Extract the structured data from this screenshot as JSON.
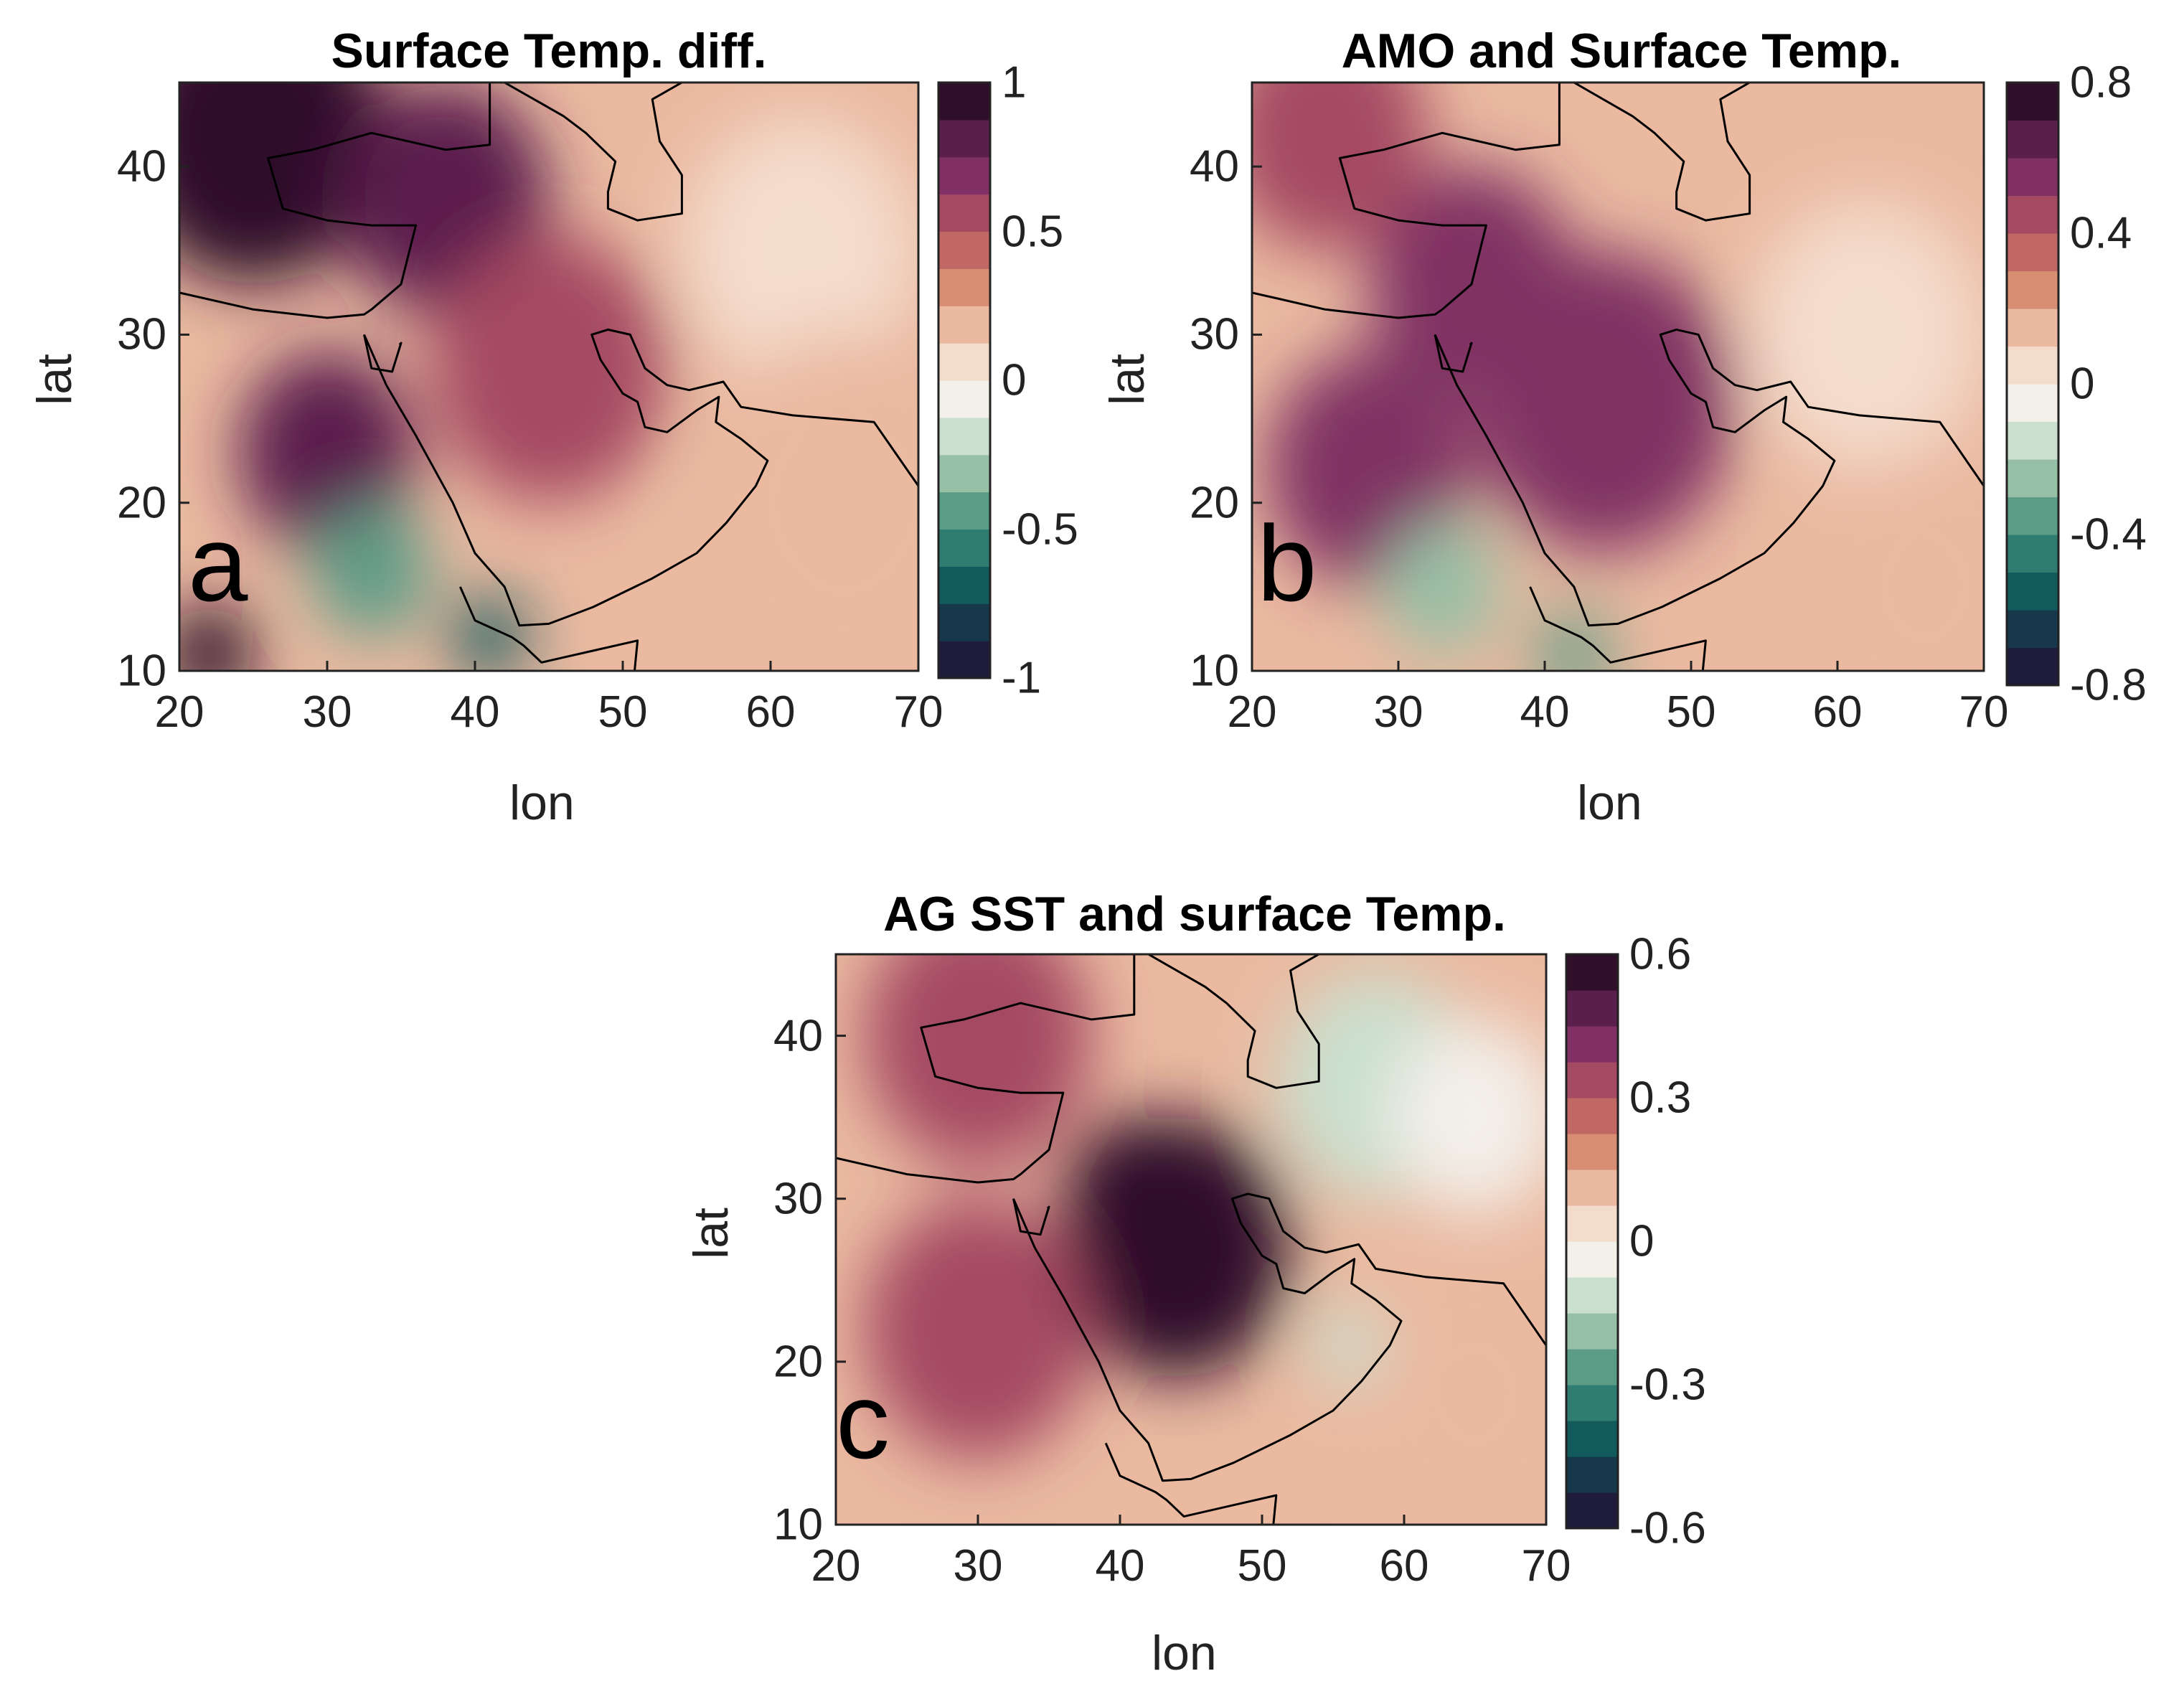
{
  "figure": {
    "colormap": [
      "#1e1b3b",
      "#17384a",
      "#135a5d",
      "#2f7c71",
      "#5b9c86",
      "#96c0a6",
      "#cadfce",
      "#f3efe9",
      "#f4dccc",
      "#eab9a0",
      "#d88e73",
      "#c26864",
      "#a44a62",
      "#803064",
      "#5b1f4e",
      "#2f0f2a"
    ],
    "coastline_color": "#000000"
  },
  "chart_data": [
    {
      "id": "a",
      "type": "heatmap",
      "title": "Surface Temp. diff.",
      "panel_letter": "a",
      "xlabel": "lon",
      "ylabel": "lat",
      "xlim": [
        20,
        70
      ],
      "ylim": [
        10,
        45
      ],
      "xticks": [
        "20",
        "30",
        "40",
        "50",
        "60",
        "70"
      ],
      "yticks": [
        "10",
        "20",
        "30",
        "40"
      ],
      "colorbar": {
        "range": [
          -1,
          1
        ],
        "ticks": [
          "1",
          "0.5",
          "0",
          "-0.5",
          "-1"
        ]
      },
      "features": [
        {
          "lon": 25,
          "lat": 42,
          "value": 0.9,
          "r": 9
        },
        {
          "lon": 38,
          "lat": 38,
          "value": 0.85,
          "r": 7
        },
        {
          "lon": 30,
          "lat": 23,
          "value": 0.75,
          "r": 6
        },
        {
          "lon": 45,
          "lat": 28,
          "value": 0.55,
          "r": 8
        },
        {
          "lon": 33,
          "lat": 16,
          "value": -0.4,
          "r": 4
        },
        {
          "lon": 41,
          "lat": 12,
          "value": -0.7,
          "r": 2.5
        },
        {
          "lon": 22,
          "lat": 11,
          "value": 0.9,
          "r": 3
        },
        {
          "lon": 62,
          "lat": 35,
          "value": 0.05,
          "r": 8
        },
        {
          "lon": 65,
          "lat": 20,
          "value": 0.15,
          "r": 10
        }
      ]
    },
    {
      "id": "b",
      "type": "heatmap",
      "title": "AMO and Surface Temp.",
      "panel_letter": "b",
      "xlabel": "lon",
      "ylabel": "lat",
      "xlim": [
        20,
        70
      ],
      "ylim": [
        10,
        45
      ],
      "xticks": [
        "20",
        "30",
        "40",
        "50",
        "60",
        "70"
      ],
      "yticks": [
        "10",
        "20",
        "30",
        "40"
      ],
      "colorbar": {
        "range": [
          -0.8,
          0.8
        ],
        "ticks": [
          "0.8",
          "0.4",
          "0",
          "-0.4",
          "-0.8"
        ]
      },
      "features": [
        {
          "lon": 44,
          "lat": 26,
          "value": 0.6,
          "r": 9
        },
        {
          "lon": 35,
          "lat": 33,
          "value": 0.55,
          "r": 7
        },
        {
          "lon": 28,
          "lat": 22,
          "value": 0.5,
          "r": 7
        },
        {
          "lon": 33,
          "lat": 15,
          "value": -0.25,
          "r": 4
        },
        {
          "lon": 42,
          "lat": 11,
          "value": -0.4,
          "r": 2.5
        },
        {
          "lon": 62,
          "lat": 30,
          "value": 0.05,
          "r": 8
        },
        {
          "lon": 66,
          "lat": 15,
          "value": 0.15,
          "r": 8
        },
        {
          "lon": 25,
          "lat": 42,
          "value": 0.4,
          "r": 7
        }
      ]
    },
    {
      "id": "c",
      "type": "heatmap",
      "title": "AG SST and surface Temp.",
      "panel_letter": "c",
      "xlabel": "lon",
      "ylabel": "lat",
      "xlim": [
        20,
        70
      ],
      "ylim": [
        10,
        45
      ],
      "xticks": [
        "20",
        "30",
        "40",
        "50",
        "60",
        "70"
      ],
      "yticks": [
        "10",
        "20",
        "30",
        "40"
      ],
      "colorbar": {
        "range": [
          -0.6,
          0.6
        ],
        "ticks": [
          "0.6",
          "0.3",
          "0",
          "-0.3",
          "-0.6"
        ]
      },
      "features": [
        {
          "lon": 44,
          "lat": 27,
          "value": 0.6,
          "r": 8
        },
        {
          "lon": 41,
          "lat": 30,
          "value": 0.6,
          "r": 5
        },
        {
          "lon": 30,
          "lat": 22,
          "value": 0.3,
          "r": 8
        },
        {
          "lon": 58,
          "lat": 37,
          "value": -0.15,
          "r": 7
        },
        {
          "lon": 65,
          "lat": 35,
          "value": -0.05,
          "r": 6
        },
        {
          "lon": 65,
          "lat": 18,
          "value": 0.12,
          "r": 8
        },
        {
          "lon": 56,
          "lat": 21,
          "value": -0.15,
          "r": 2.5
        },
        {
          "lon": 30,
          "lat": 40,
          "value": 0.3,
          "r": 8
        }
      ]
    }
  ]
}
